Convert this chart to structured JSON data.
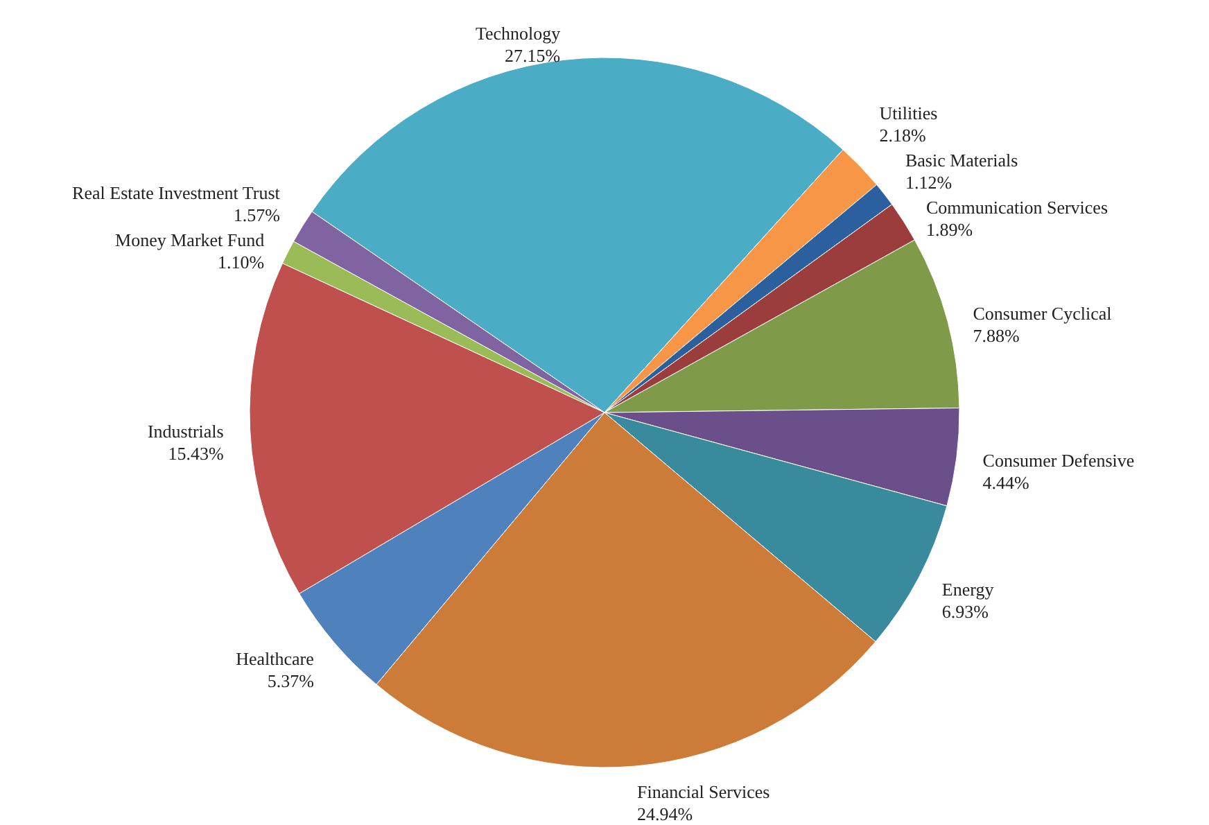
{
  "chart_data": {
    "type": "pie",
    "categories": [
      "Technology",
      "Utilities",
      "Basic Materials",
      "Communication Services",
      "Consumer Cyclical",
      "Consumer Defensive",
      "Energy",
      "Financial Services",
      "Healthcare",
      "Industrials",
      "Money Market Fund",
      "Real Estate Investment Trust"
    ],
    "values": [
      27.15,
      2.18,
      1.12,
      1.89,
      7.88,
      4.44,
      6.93,
      24.94,
      5.37,
      15.43,
      1.1,
      1.57
    ],
    "value_labels": [
      "27.15%",
      "2.18%",
      "1.12%",
      "1.89%",
      "7.88%",
      "4.44%",
      "6.93%",
      "24.94%",
      "5.37%",
      "15.43%",
      "1.10%",
      "1.57%"
    ],
    "colors": [
      "#4bacc6",
      "#f79646",
      "#2c5f9e",
      "#9b3d3d",
      "#7f9a48",
      "#6a4f8a",
      "#3a8a9e",
      "#cd7b38",
      "#4f81bd",
      "#c0504d",
      "#9bbb59",
      "#8064a2"
    ]
  }
}
